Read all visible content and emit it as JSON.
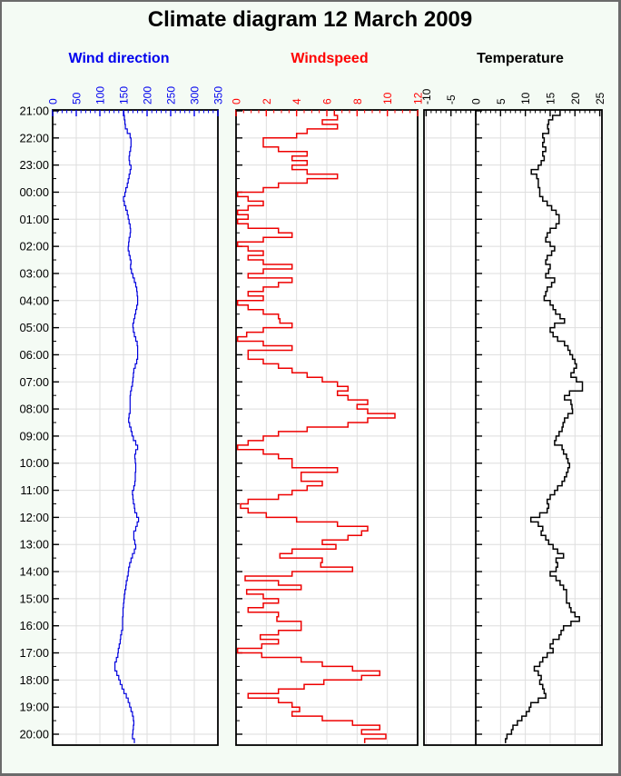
{
  "title": "Climate diagram 12 March 2009",
  "frame": {
    "background": "#f4fbf4",
    "border_color": "#6b6b6b",
    "plot_background": "#ffffff",
    "grid_color": "#dedede",
    "axis_color": "#000000"
  },
  "time_axis": {
    "orientation": "vertical",
    "major_interval": "1 hour",
    "minor_interval": "30 min",
    "labels": [
      "21:00",
      "22:00",
      "23:00",
      "00:00",
      "01:00",
      "02:00",
      "03:00",
      "04:00",
      "05:00",
      "06:00",
      "07:00",
      "08:00",
      "09:00",
      "10:00",
      "11:00",
      "12:00",
      "13:00",
      "14:00",
      "15:00",
      "16:00",
      "17:00",
      "18:00",
      "19:00",
      "20:00"
    ]
  },
  "chart_data": [
    {
      "type": "line",
      "style": "step",
      "title": "Wind direction",
      "color": "#0000dd",
      "label_color": "#0000ee",
      "xlim": [
        0,
        350
      ],
      "tick_labels": [
        "0",
        "50",
        "100",
        "150",
        "200",
        "250",
        "300",
        "350"
      ],
      "minor_tick": 10,
      "start_time": "21:00",
      "sample_interval_minutes": 10,
      "values": [
        151,
        152,
        153,
        154,
        158,
        164,
        166,
        166,
        165,
        163,
        162,
        163,
        166,
        164,
        162,
        160,
        158,
        155,
        153,
        150,
        152,
        155,
        158,
        160,
        162,
        164,
        165,
        164,
        162,
        161,
        160,
        162,
        164,
        166,
        165,
        167,
        170,
        173,
        176,
        178,
        179,
        180,
        180,
        178,
        176,
        174,
        172,
        170,
        171,
        173,
        176,
        179,
        180,
        180,
        180,
        178,
        175,
        172,
        171,
        170,
        169,
        167,
        165,
        164,
        164,
        164,
        164,
        162,
        161,
        163,
        166,
        168,
        171,
        176,
        180,
        176,
        174,
        175,
        176,
        176,
        175,
        175,
        174,
        172,
        169,
        170,
        171,
        173,
        174,
        178,
        182,
        179,
        176,
        172,
        172,
        174,
        176,
        173,
        169,
        166,
        163,
        161,
        160,
        158,
        156,
        155,
        153,
        152,
        151,
        150,
        149,
        149,
        148,
        148,
        148,
        146,
        144,
        143,
        141,
        139,
        138,
        135,
        132,
        132,
        136,
        140,
        143,
        147,
        151,
        156,
        160,
        163,
        166,
        169,
        171,
        172,
        171,
        170,
        169,
        173
      ]
    },
    {
      "type": "line",
      "style": "step",
      "title": "Windspeed",
      "color": "#ee0000",
      "label_color": "#ff0000",
      "xlim": [
        0,
        12
      ],
      "tick_labels": [
        "0",
        "2",
        "4",
        "6",
        "8",
        "10",
        "12"
      ],
      "minor_tick": 0.5,
      "start_time": "21:00",
      "sample_interval_minutes": 10,
      "values": [
        6.5,
        6.7,
        5.7,
        6.7,
        4.7,
        4.0,
        1.8,
        1.8,
        2.8,
        4.7,
        3.7,
        4.7,
        3.7,
        4.7,
        6.7,
        4.7,
        2.8,
        1.8,
        0.1,
        0.8,
        1.8,
        0.8,
        0.1,
        0.8,
        0.1,
        0.8,
        2.8,
        3.7,
        1.8,
        0.1,
        0.8,
        1.8,
        0.8,
        1.8,
        3.7,
        1.8,
        0.8,
        3.7,
        2.8,
        1.8,
        0.8,
        1.8,
        0.1,
        0.8,
        1.8,
        2.8,
        2.9,
        3.7,
        1.8,
        0.7,
        0.1,
        1.8,
        3.7,
        0.8,
        0.8,
        1.8,
        2.8,
        3.7,
        4.7,
        5.7,
        6.7,
        7.4,
        6.7,
        7.4,
        8.7,
        8.0,
        8.7,
        10.5,
        8.7,
        7.4,
        4.7,
        2.8,
        1.8,
        0.8,
        0.1,
        1.8,
        2.8,
        3.7,
        3.7,
        6.7,
        4.3,
        4.3,
        5.7,
        4.7,
        3.7,
        2.8,
        0.8,
        0.3,
        0.8,
        2.0,
        4.0,
        6.7,
        8.7,
        8.3,
        7.4,
        5.7,
        6.6,
        3.7,
        2.9,
        5.7,
        5.6,
        7.7,
        3.7,
        0.6,
        2.8,
        4.3,
        0.7,
        1.8,
        2.8,
        1.8,
        0.8,
        2.8,
        2.7,
        4.3,
        4.3,
        2.8,
        1.6,
        2.8,
        1.7,
        0.1,
        1.7,
        4.3,
        5.7,
        7.7,
        9.5,
        8.3,
        5.8,
        4.5,
        2.8,
        0.8,
        2.8,
        3.7,
        4.2,
        3.7,
        5.7,
        7.7,
        9.5,
        8.3,
        9.9,
        8.5
      ]
    },
    {
      "type": "line",
      "style": "step",
      "title": "Temperature",
      "color": "#000000",
      "label_color": "#000000",
      "xlim": [
        -10,
        25
      ],
      "tick_labels": [
        "-10",
        "-5",
        "0",
        "5",
        "10",
        "15",
        "20",
        "25"
      ],
      "minor_tick": 1,
      "zero_axis_line": true,
      "start_time": "21:00",
      "sample_interval_minutes": 10,
      "values": [
        17.0,
        15.5,
        14.7,
        14.5,
        14.7,
        13.5,
        13.8,
        13.5,
        14.1,
        13.5,
        13.8,
        13.2,
        12.6,
        11.2,
        12.3,
        12.6,
        12.6,
        12.9,
        12.9,
        13.5,
        14.4,
        15.3,
        16.2,
        16.8,
        16.8,
        16.2,
        15.0,
        14.4,
        14.1,
        15.0,
        15.9,
        15.3,
        14.4,
        14.1,
        15.0,
        14.7,
        14.1,
        15.9,
        15.3,
        14.4,
        14.1,
        13.8,
        15.0,
        15.6,
        16.1,
        17.0,
        17.9,
        15.9,
        15.0,
        15.6,
        16.5,
        17.9,
        18.6,
        19.0,
        19.5,
        20.0,
        20.3,
        19.8,
        19.2,
        20.3,
        21.5,
        21.5,
        18.9,
        17.9,
        19.2,
        19.4,
        19.5,
        18.6,
        17.9,
        17.6,
        17.4,
        16.8,
        16.2,
        15.9,
        17.4,
        17.7,
        18.3,
        18.6,
        18.9,
        18.6,
        18.3,
        17.9,
        17.4,
        16.5,
        15.9,
        15.0,
        14.4,
        14.7,
        14.4,
        12.9,
        11.1,
        12.6,
        13.5,
        13.2,
        14.1,
        14.7,
        15.6,
        16.5,
        17.7,
        16.2,
        16.5,
        16.2,
        15.0,
        16.2,
        17.0,
        17.7,
        18.3,
        18.3,
        18.3,
        18.9,
        19.2,
        20.0,
        20.9,
        19.2,
        17.7,
        17.2,
        16.8,
        15.6,
        15.0,
        15.6,
        14.4,
        13.5,
        12.9,
        11.8,
        12.6,
        13.2,
        12.9,
        13.5,
        13.8,
        14.1,
        12.6,
        11.1,
        10.8,
        10.2,
        9.3,
        8.4,
        7.5,
        7.2,
        6.3,
        6.0
      ]
    }
  ]
}
